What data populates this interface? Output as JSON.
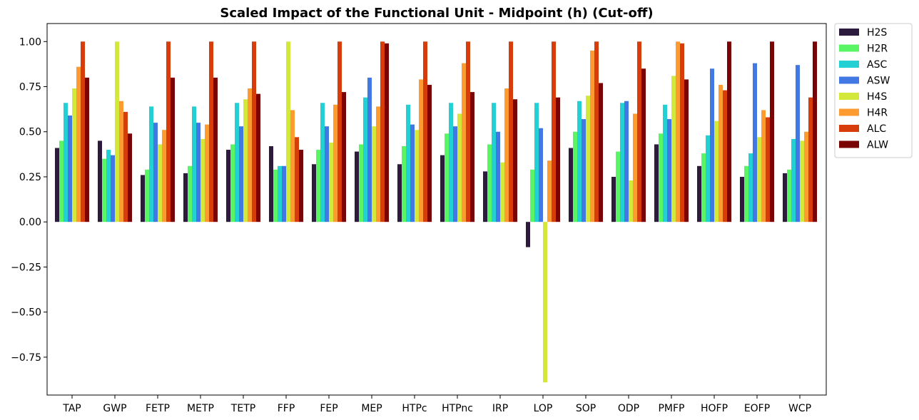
{
  "chart_data": {
    "type": "bar",
    "title": "Scaled Impact of the Functional Unit - Midpoint (h) (Cut-off)",
    "xlabel": "",
    "ylabel": "",
    "ylim": [
      -0.96,
      1.1
    ],
    "yticks": [
      -0.75,
      -0.5,
      -0.25,
      0.0,
      0.25,
      0.5,
      0.75,
      1.0
    ],
    "ytick_labels": [
      "−0.75",
      "−0.50",
      "−0.25",
      "0.00",
      "0.25",
      "0.50",
      "0.75",
      "1.00"
    ],
    "grid": false,
    "legend_position": "outside-top-right",
    "categories": [
      "TAP",
      "GWP",
      "FETP",
      "METP",
      "TETP",
      "FFP",
      "FEP",
      "MEP",
      "HTPc",
      "HTPnc",
      "IRP",
      "LOP",
      "SOP",
      "ODP",
      "PMFP",
      "HOFP",
      "EOFP",
      "WCP"
    ],
    "series": [
      {
        "name": "H2S",
        "color": "#2d1b3d",
        "values": [
          0.41,
          0.45,
          0.26,
          0.27,
          0.4,
          0.42,
          0.32,
          0.39,
          0.32,
          0.37,
          0.28,
          -0.14,
          0.41,
          0.25,
          0.43,
          0.31,
          0.25,
          0.27
        ]
      },
      {
        "name": "H2R",
        "color": "#5af565",
        "values": [
          0.45,
          0.35,
          0.29,
          0.31,
          0.43,
          0.29,
          0.4,
          0.43,
          0.42,
          0.49,
          0.43,
          0.29,
          0.5,
          0.39,
          0.49,
          0.38,
          0.31,
          0.29
        ]
      },
      {
        "name": "ASC",
        "color": "#23d0d4",
        "values": [
          0.66,
          0.4,
          0.64,
          0.64,
          0.66,
          0.31,
          0.66,
          0.69,
          0.65,
          0.66,
          0.66,
          0.66,
          0.67,
          0.66,
          0.65,
          0.48,
          0.38,
          0.46
        ]
      },
      {
        "name": "ASW",
        "color": "#4178e3",
        "values": [
          0.59,
          0.37,
          0.55,
          0.55,
          0.53,
          0.31,
          0.53,
          0.8,
          0.54,
          0.53,
          0.5,
          0.52,
          0.57,
          0.67,
          0.57,
          0.85,
          0.88,
          0.87
        ]
      },
      {
        "name": "H4S",
        "color": "#d4e83b",
        "values": [
          0.74,
          1.0,
          0.43,
          0.46,
          0.68,
          1.0,
          0.44,
          0.53,
          0.51,
          0.6,
          0.33,
          -0.89,
          0.7,
          0.23,
          0.81,
          0.56,
          0.47,
          0.45
        ]
      },
      {
        "name": "H4R",
        "color": "#fd9a30",
        "values": [
          0.86,
          0.67,
          0.51,
          0.54,
          0.74,
          0.62,
          0.65,
          0.64,
          0.79,
          0.88,
          0.74,
          0.34,
          0.95,
          0.6,
          1.0,
          0.76,
          0.62,
          0.5
        ]
      },
      {
        "name": "ALC",
        "color": "#d73d0b",
        "values": [
          1.0,
          0.61,
          1.0,
          1.0,
          1.0,
          0.47,
          1.0,
          1.0,
          1.0,
          1.0,
          1.0,
          1.0,
          1.0,
          1.0,
          0.99,
          0.73,
          0.58,
          0.69
        ]
      },
      {
        "name": "ALW",
        "color": "#7a0403",
        "values": [
          0.8,
          0.49,
          0.8,
          0.8,
          0.71,
          0.4,
          0.72,
          0.99,
          0.76,
          0.72,
          0.68,
          0.69,
          0.77,
          0.85,
          0.79,
          1.0,
          1.0,
          1.0
        ]
      }
    ]
  }
}
